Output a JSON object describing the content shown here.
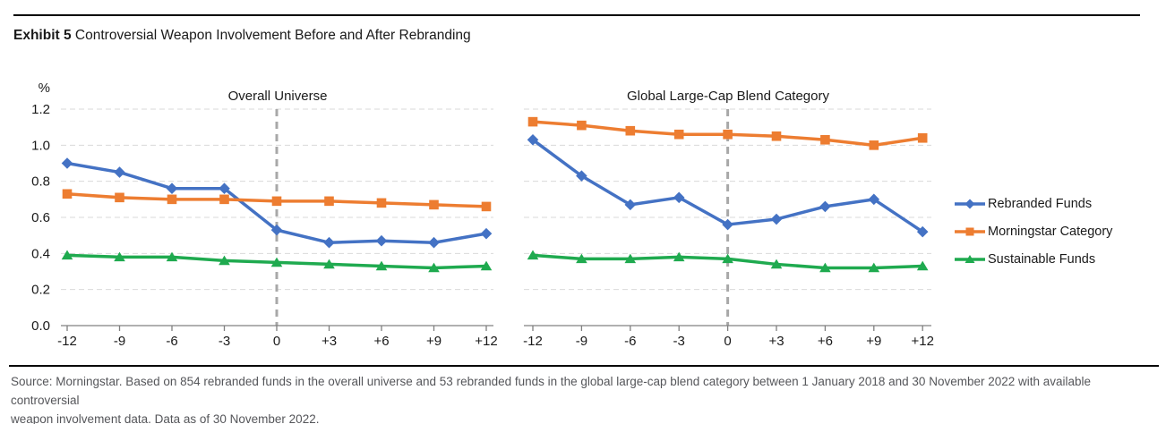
{
  "page": {
    "title_prefix": "Exhibit 5",
    "title_rest": "Controversial Weapon Involvement Before and After Rebranding"
  },
  "axis": {
    "unit_label": "%"
  },
  "legend": [
    {
      "label": "Rebranded Funds",
      "color": "#4472c4",
      "marker": "diamond"
    },
    {
      "label": "Morningstar Category",
      "color": "#ed7d31",
      "marker": "square"
    },
    {
      "label": "Sustainable Funds",
      "color": "#1faa4f",
      "marker": "triangle"
    }
  ],
  "footer": {
    "line1": "Source: Morningstar. Based on 854 rebranded funds in the overall universe and 53 rebranded funds in the global large-cap blend category between 1 January 2018 and 30 November 2022 with available controversial",
    "line2": "weapon involvement data. Data as of 30 November 2022."
  },
  "chart_data": [
    {
      "type": "line",
      "title": "Overall Universe",
      "categories": [
        "-12",
        "-9",
        "-6",
        "-3",
        "0",
        "+3",
        "+6",
        "+9",
        "+12"
      ],
      "xlabel": "",
      "ylabel": "%",
      "ylim": [
        0,
        1.2
      ],
      "yticks": [
        "0.0",
        "0.2",
        "0.4",
        "0.6",
        "0.8",
        "1.0",
        "1.2"
      ],
      "grid": "horizontal-dashed",
      "vline_at_category": "0",
      "legend_position": "right",
      "series": [
        {
          "name": "Rebranded Funds",
          "color": "#4472c4",
          "marker": "diamond",
          "values": [
            0.9,
            0.85,
            0.76,
            0.76,
            0.53,
            0.46,
            0.47,
            0.46,
            0.51
          ]
        },
        {
          "name": "Morningstar Category",
          "color": "#ed7d31",
          "marker": "square",
          "values": [
            0.73,
            0.71,
            0.7,
            0.7,
            0.69,
            0.69,
            0.68,
            0.67,
            0.66
          ]
        },
        {
          "name": "Sustainable Funds",
          "color": "#1faa4f",
          "marker": "triangle",
          "values": [
            0.39,
            0.38,
            0.38,
            0.36,
            0.35,
            0.34,
            0.33,
            0.32,
            0.33
          ]
        }
      ]
    },
    {
      "type": "line",
      "title": "Global Large-Cap Blend Category",
      "categories": [
        "-12",
        "-9",
        "-6",
        "-3",
        "0",
        "+3",
        "+6",
        "+9",
        "+12"
      ],
      "xlabel": "",
      "ylabel": "%",
      "ylim": [
        0,
        1.2
      ],
      "yticks": [
        "0.0",
        "0.2",
        "0.4",
        "0.6",
        "0.8",
        "1.0",
        "1.2"
      ],
      "grid": "horizontal-dashed",
      "vline_at_category": "0",
      "legend_position": "right",
      "series": [
        {
          "name": "Rebranded Funds",
          "color": "#4472c4",
          "marker": "diamond",
          "values": [
            1.03,
            0.83,
            0.67,
            0.71,
            0.56,
            0.59,
            0.66,
            0.7,
            0.52
          ]
        },
        {
          "name": "Morningstar Category",
          "color": "#ed7d31",
          "marker": "square",
          "values": [
            1.13,
            1.11,
            1.08,
            1.06,
            1.06,
            1.05,
            1.03,
            1.0,
            1.04
          ]
        },
        {
          "name": "Sustainable Funds",
          "color": "#1faa4f",
          "marker": "triangle",
          "values": [
            0.39,
            0.37,
            0.37,
            0.38,
            0.37,
            0.34,
            0.32,
            0.32,
            0.33
          ]
        }
      ]
    }
  ]
}
